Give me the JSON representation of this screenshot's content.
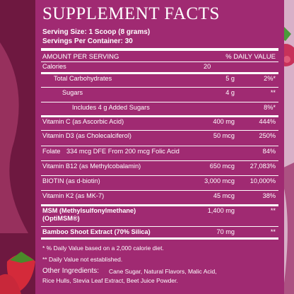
{
  "header": {
    "title": "SUPPLEMENT FACTS",
    "serving_size": "Serving Size: 1 Scoop (8 grams)",
    "servings_per_container": "Servings Per Container: 30"
  },
  "columns": {
    "amount": "AMOUNT PER SERVING",
    "daily_value": "% DAILY VALUE"
  },
  "rows": [
    {
      "name": "Calories",
      "amount": "20"
    },
    {
      "name": "Total Carbohydrates",
      "amount": "5 g",
      "daily_value": "2%*"
    },
    {
      "name": "Sugars",
      "amount": "4 g",
      "daily_value": "**"
    },
    {
      "name": "Includes 4 g Added Sugars",
      "daily_value": "8%*"
    },
    {
      "name": "Vitamin C (as Ascorbic Acid)",
      "amount": "400 mg",
      "daily_value": "444%"
    },
    {
      "name": "Vitamin D3 (as Cholecalciferol)",
      "amount": "50 mcg",
      "daily_value": "250%"
    },
    {
      "name": "Folate",
      "amount": "334 mcg DFE From 200 mcg Folic Acid",
      "daily_value": "84%"
    },
    {
      "name": "Vitamin B12 (as Methylcobalamin)",
      "amount": "650 mcg",
      "daily_value": "27,083%"
    },
    {
      "name": "BIOTIN (as d-biotin)",
      "amount": "3,000 mcg",
      "daily_value": "10,000%"
    },
    {
      "name": "Vitamin K2 (as MK-7)",
      "amount": "45 mcg",
      "daily_value": "38%"
    },
    {
      "name": "MSM (Methylsulfonylmethane)",
      "name2": "(OptiMSM®)",
      "amount": "1,400 mg",
      "daily_value": "**"
    },
    {
      "name": "Bamboo Shoot Extract (70% Silica)",
      "amount": "70 mg",
      "daily_value": "**"
    }
  ],
  "footnotes": [
    "* % Daily Value based on a 2,000 calorie diet.",
    "** Daily Value not established."
  ],
  "other_ingredients": {
    "label": "Other Ingredients:",
    "text_line1": "Cane Sugar, Natural Flavors, Malic Acid,",
    "text_line2": "Rice Hulls, Stevia Leaf Extract, Beet Juice Powder."
  }
}
